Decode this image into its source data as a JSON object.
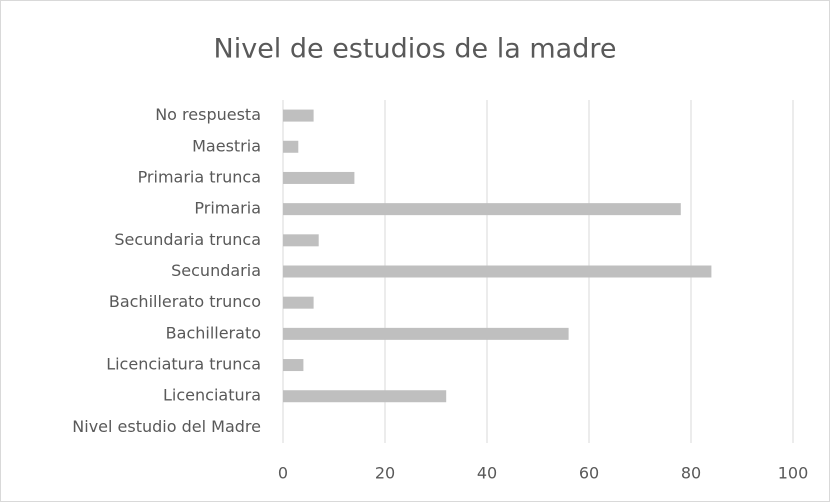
{
  "chart_data": {
    "type": "hbar",
    "title": "Nivel de estudios de la madre",
    "categories": [
      "No respuesta",
      "Maestria",
      "Primaria trunca",
      "Primaria",
      "Secundaria trunca",
      "Secundaria",
      "Bachillerato trunco",
      "Bachillerato",
      "Licenciatura trunca",
      "Licenciatura",
      "Nivel estudio del Madre"
    ],
    "values": [
      6,
      3,
      14,
      78,
      7,
      84,
      6,
      56,
      4,
      32,
      null
    ],
    "color": "#bfbfbf",
    "xlim": [
      0,
      100
    ],
    "xticks": [
      0,
      20,
      40,
      60,
      80,
      100
    ],
    "grid": true
  }
}
